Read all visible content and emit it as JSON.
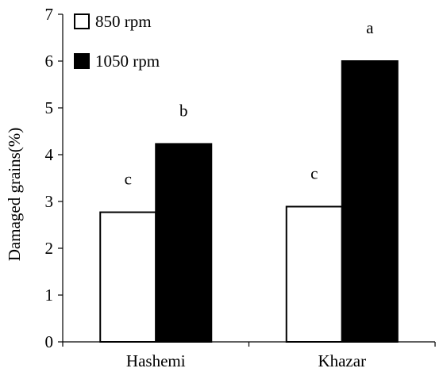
{
  "chart_data": {
    "type": "bar",
    "categories": [
      "Hashemi",
      "Khazar"
    ],
    "series": [
      {
        "name": "850 rpm",
        "values": [
          2.77,
          2.89
        ],
        "color": "#ffffff",
        "labels": [
          "c",
          "c"
        ]
      },
      {
        "name": "1050 rpm",
        "values": [
          4.23,
          6.0
        ],
        "color": "#000000",
        "labels": [
          "b",
          "a"
        ]
      }
    ],
    "ylabel": "Damaged grains(%)",
    "xlabel": "",
    "ylim": [
      0,
      7
    ],
    "yticks": [
      0,
      1,
      2,
      3,
      4,
      5,
      6,
      7
    ],
    "grid": false,
    "legend_position": "top-left"
  }
}
